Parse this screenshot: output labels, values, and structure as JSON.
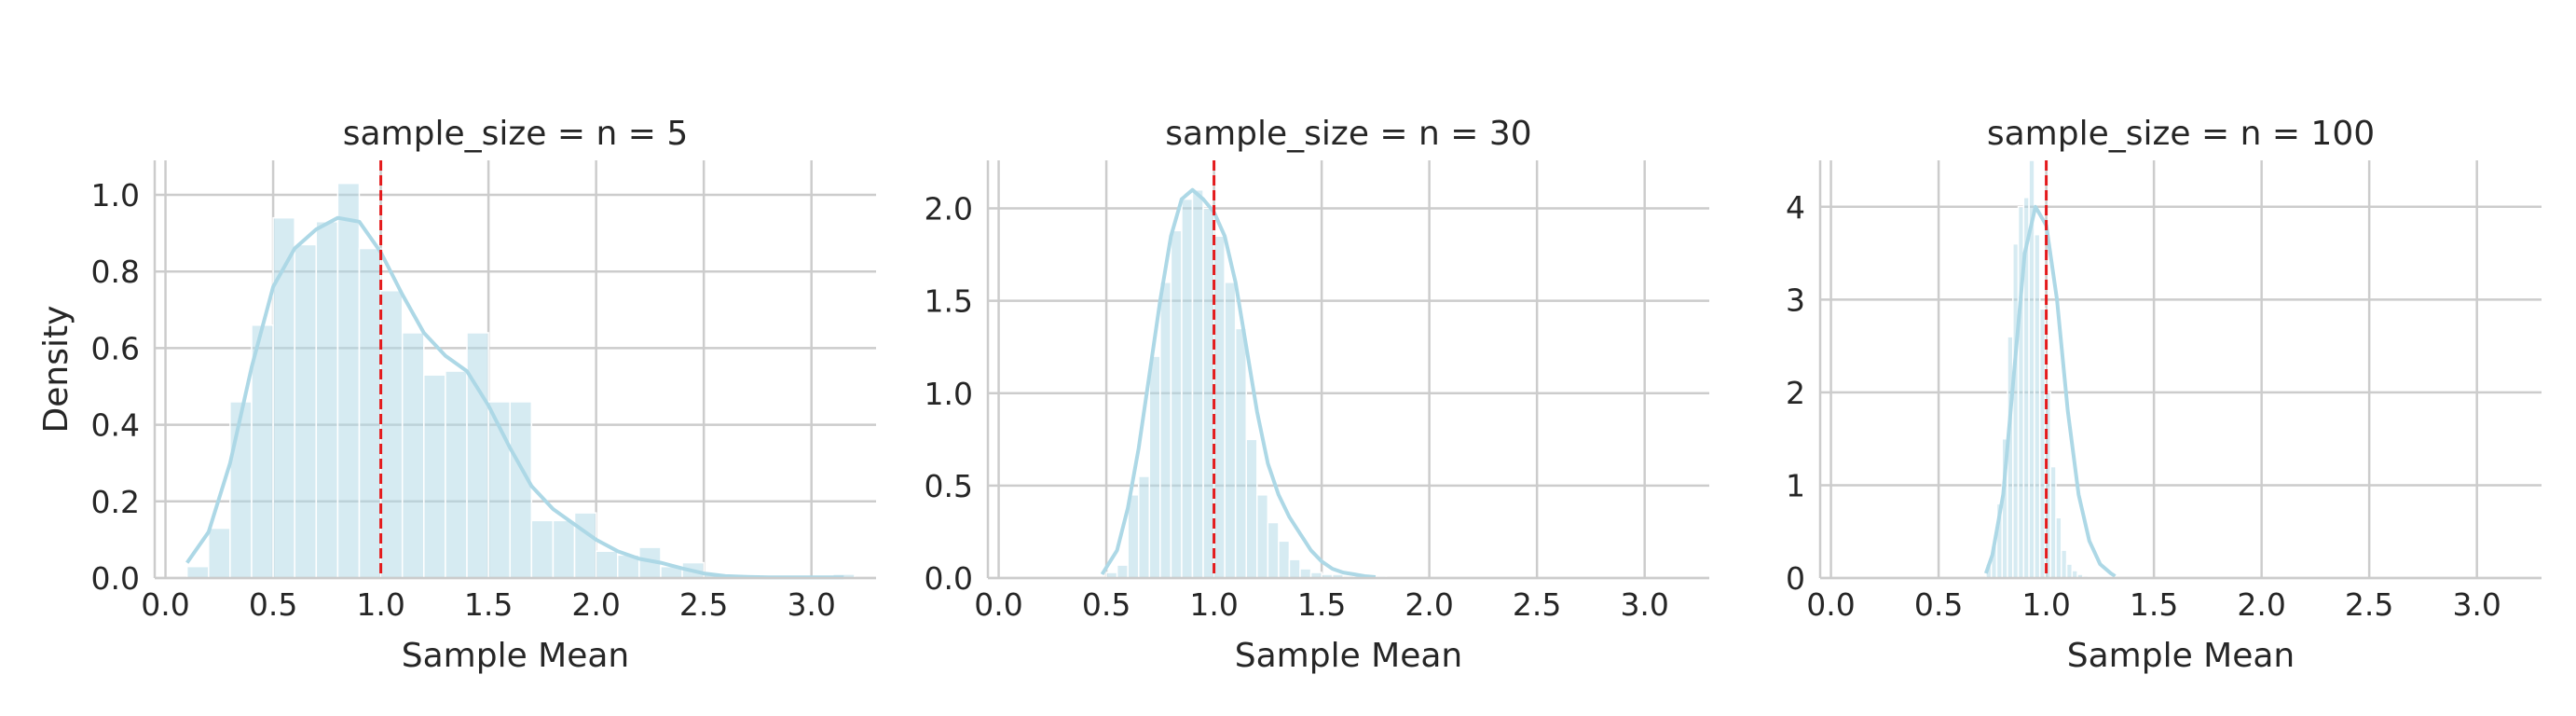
{
  "figure": {
    "suptitle": "",
    "bar_color": "#add8e6",
    "kde_color": "#add8e6",
    "refline_color": "#e41a1c",
    "grid_color": "#cccccc"
  },
  "chart_data": [
    {
      "type": "bar",
      "subtype": "histogram-with-kde",
      "title": "sample_size = n = 5",
      "xlabel": "Sample Mean",
      "ylabel": "Density",
      "xlim": [
        -0.05,
        3.3
      ],
      "ylim": [
        0,
        1.09
      ],
      "xticks": [
        0.0,
        0.5,
        1.0,
        1.5,
        2.0,
        2.5,
        3.0
      ],
      "xtick_labels": [
        "0.0",
        "0.5",
        "1.0",
        "1.5",
        "2.0",
        "2.5",
        "3.0"
      ],
      "yticks": [
        0.0,
        0.2,
        0.4,
        0.6,
        0.8,
        1.0
      ],
      "ytick_labels": [
        "0.0",
        "0.2",
        "0.4",
        "0.6",
        "0.8",
        "1.0"
      ],
      "reference_line": {
        "x": 1.0,
        "style": "dashed"
      },
      "grid": true,
      "bin_start": 0.1,
      "bin_width": 0.1,
      "bin_density": [
        0.03,
        0.13,
        0.46,
        0.66,
        0.94,
        0.87,
        0.93,
        1.03,
        0.86,
        0.75,
        0.64,
        0.53,
        0.54,
        0.64,
        0.46,
        0.46,
        0.15,
        0.15,
        0.17,
        0.07,
        0.06,
        0.08,
        0.03,
        0.04,
        0.01,
        0.0,
        0.0,
        0.0,
        0.0,
        0.0,
        0.01
      ],
      "kde": {
        "x": [
          0.1,
          0.2,
          0.3,
          0.4,
          0.5,
          0.6,
          0.7,
          0.8,
          0.9,
          1.0,
          1.1,
          1.2,
          1.3,
          1.4,
          1.5,
          1.6,
          1.7,
          1.8,
          1.9,
          2.0,
          2.1,
          2.2,
          2.3,
          2.4,
          2.5,
          2.6,
          2.7,
          2.8,
          2.9,
          3.0,
          3.1,
          3.15
        ],
        "y": [
          0.04,
          0.12,
          0.3,
          0.55,
          0.76,
          0.86,
          0.91,
          0.94,
          0.93,
          0.85,
          0.74,
          0.64,
          0.58,
          0.54,
          0.45,
          0.34,
          0.24,
          0.18,
          0.14,
          0.1,
          0.07,
          0.05,
          0.04,
          0.025,
          0.012,
          0.005,
          0.003,
          0.002,
          0.002,
          0.002,
          0.002,
          0.002
        ]
      }
    },
    {
      "type": "bar",
      "subtype": "histogram-with-kde",
      "title": "sample_size = n = 30",
      "xlabel": "Sample Mean",
      "ylabel": "",
      "xlim": [
        -0.05,
        3.3
      ],
      "ylim": [
        0,
        2.26
      ],
      "xticks": [
        0.0,
        0.5,
        1.0,
        1.5,
        2.0,
        2.5,
        3.0
      ],
      "xtick_labels": [
        "0.0",
        "0.5",
        "1.0",
        "1.5",
        "2.0",
        "2.5",
        "3.0"
      ],
      "yticks": [
        0.0,
        0.5,
        1.0,
        1.5,
        2.0
      ],
      "ytick_labels": [
        "0.0",
        "0.5",
        "1.0",
        "1.5",
        "2.0"
      ],
      "reference_line": {
        "x": 1.0,
        "style": "dashed"
      },
      "grid": true,
      "bin_start": 0.5,
      "bin_width": 0.05,
      "bin_density": [
        0.03,
        0.07,
        0.45,
        0.55,
        1.2,
        1.6,
        1.88,
        2.05,
        2.1,
        2.0,
        1.85,
        1.6,
        1.35,
        0.75,
        0.45,
        0.3,
        0.2,
        0.1,
        0.05,
        0.03,
        0.02,
        0.02,
        0.01,
        0.01,
        0.01,
        0.01
      ],
      "kde": {
        "x": [
          0.48,
          0.55,
          0.6,
          0.65,
          0.7,
          0.75,
          0.8,
          0.85,
          0.9,
          0.95,
          1.0,
          1.05,
          1.1,
          1.15,
          1.2,
          1.25,
          1.3,
          1.35,
          1.4,
          1.45,
          1.5,
          1.55,
          1.6,
          1.65,
          1.7,
          1.75
        ],
        "y": [
          0.02,
          0.15,
          0.38,
          0.7,
          1.1,
          1.5,
          1.85,
          2.05,
          2.1,
          2.05,
          1.98,
          1.85,
          1.6,
          1.25,
          0.9,
          0.62,
          0.45,
          0.33,
          0.24,
          0.15,
          0.09,
          0.05,
          0.03,
          0.02,
          0.01,
          0.005
        ]
      }
    },
    {
      "type": "bar",
      "subtype": "histogram-with-kde",
      "title": "sample_size = n = 100",
      "xlabel": "Sample Mean",
      "ylabel": "",
      "xlim": [
        -0.05,
        3.3
      ],
      "ylim": [
        0,
        4.5
      ],
      "xticks": [
        0.0,
        0.5,
        1.0,
        1.5,
        2.0,
        2.5,
        3.0
      ],
      "xtick_labels": [
        "0.0",
        "0.5",
        "1.0",
        "1.5",
        "2.0",
        "2.5",
        "3.0"
      ],
      "yticks": [
        0,
        1,
        2,
        3,
        4
      ],
      "ytick_labels": [
        "0",
        "1",
        "2",
        "3",
        "4"
      ],
      "reference_line": {
        "x": 1.0,
        "style": "dashed"
      },
      "grid": true,
      "bin_start": 0.72,
      "bin_width": 0.025,
      "bin_density": [
        0.15,
        0.35,
        0.8,
        1.5,
        2.6,
        3.6,
        4.0,
        4.1,
        4.5,
        3.7,
        2.9,
        2.0,
        1.2,
        0.65,
        0.3,
        0.15,
        0.08,
        0.04,
        0.02,
        0.01,
        0.01,
        0.01,
        0.01,
        0.01
      ],
      "kde": {
        "x": [
          0.72,
          0.75,
          0.8,
          0.85,
          0.9,
          0.95,
          1.0,
          1.05,
          1.1,
          1.15,
          1.2,
          1.25,
          1.3,
          1.32
        ],
        "y": [
          0.05,
          0.25,
          0.9,
          2.2,
          3.5,
          4.0,
          3.8,
          3.0,
          1.8,
          0.9,
          0.4,
          0.15,
          0.05,
          0.02
        ]
      }
    }
  ]
}
